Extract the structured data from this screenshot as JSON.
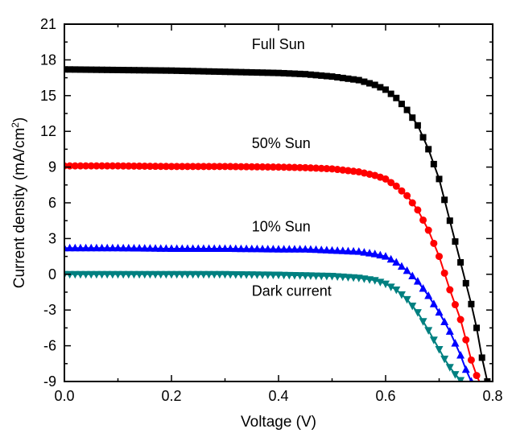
{
  "chart_data": {
    "type": "line",
    "xlabel": "Voltage (V)",
    "ylabel_main": "Current density (mA/cm",
    "ylabel_sup": "2",
    "ylabel_end": ")",
    "xlim": [
      0.0,
      0.8
    ],
    "ylim": [
      -9,
      21
    ],
    "xticks": [
      "0.0",
      "0.2",
      "0.4",
      "0.6",
      "0.8"
    ],
    "yticks": [
      "-9",
      "-6",
      "-3",
      "0",
      "3",
      "6",
      "9",
      "12",
      "15",
      "18",
      "21"
    ],
    "grid": false,
    "legend": "none",
    "series": [
      {
        "name": "Full Sun",
        "color": "#000000",
        "marker": "square",
        "x": [
          0.0,
          0.1,
          0.2,
          0.3,
          0.4,
          0.45,
          0.5,
          0.55,
          0.58,
          0.6,
          0.62,
          0.64,
          0.66,
          0.68,
          0.7,
          0.72,
          0.74,
          0.76,
          0.77,
          0.78,
          0.79
        ],
        "y": [
          17.2,
          17.15,
          17.1,
          17.0,
          16.9,
          16.8,
          16.6,
          16.3,
          15.9,
          15.5,
          14.8,
          13.8,
          12.5,
          10.5,
          8.0,
          4.5,
          1.0,
          -2.5,
          -4.5,
          -7.0,
          -9.0
        ]
      },
      {
        "name": "50% Sun",
        "color": "#ff0000",
        "marker": "circle",
        "x": [
          0.0,
          0.1,
          0.2,
          0.3,
          0.4,
          0.45,
          0.5,
          0.55,
          0.58,
          0.6,
          0.62,
          0.64,
          0.66,
          0.68,
          0.7,
          0.72,
          0.74,
          0.75,
          0.76,
          0.77,
          0.775
        ],
        "y": [
          9.1,
          9.1,
          9.05,
          9.05,
          9.0,
          8.95,
          8.85,
          8.6,
          8.3,
          8.0,
          7.4,
          6.6,
          5.4,
          3.7,
          1.5,
          -1.3,
          -3.8,
          -5.5,
          -7.2,
          -8.5,
          -9.0
        ]
      },
      {
        "name": "10% Sun",
        "color": "#0000ff",
        "marker": "triangle-up",
        "x": [
          0.0,
          0.1,
          0.2,
          0.3,
          0.4,
          0.45,
          0.5,
          0.55,
          0.58,
          0.6,
          0.62,
          0.64,
          0.66,
          0.68,
          0.7,
          0.72,
          0.73,
          0.74,
          0.75,
          0.76
        ],
        "y": [
          2.2,
          2.2,
          2.15,
          2.15,
          2.1,
          2.1,
          2.0,
          1.9,
          1.7,
          1.5,
          1.0,
          0.3,
          -0.6,
          -1.8,
          -3.2,
          -4.8,
          -5.8,
          -6.8,
          -8.0,
          -9.0
        ]
      },
      {
        "name": "Dark current",
        "color": "#008080",
        "marker": "triangle-down",
        "x": [
          0.0,
          0.1,
          0.2,
          0.3,
          0.4,
          0.45,
          0.5,
          0.55,
          0.58,
          0.6,
          0.62,
          0.64,
          0.66,
          0.68,
          0.7,
          0.71,
          0.72,
          0.73,
          0.74,
          0.745
        ],
        "y": [
          0.0,
          0.0,
          0.0,
          0.0,
          -0.05,
          -0.1,
          -0.15,
          -0.3,
          -0.5,
          -0.8,
          -1.3,
          -2.1,
          -3.2,
          -4.7,
          -6.3,
          -7.1,
          -7.8,
          -8.4,
          -8.9,
          -9.0
        ]
      }
    ],
    "annotations": [
      {
        "text": "Full Sun",
        "x": 0.35,
        "y": 18.9
      },
      {
        "text": "50% Sun",
        "x": 0.35,
        "y": 10.6
      },
      {
        "text": "10% Sun",
        "x": 0.35,
        "y": 3.6
      },
      {
        "text": "Dark current",
        "x": 0.35,
        "y": -1.8
      }
    ]
  }
}
